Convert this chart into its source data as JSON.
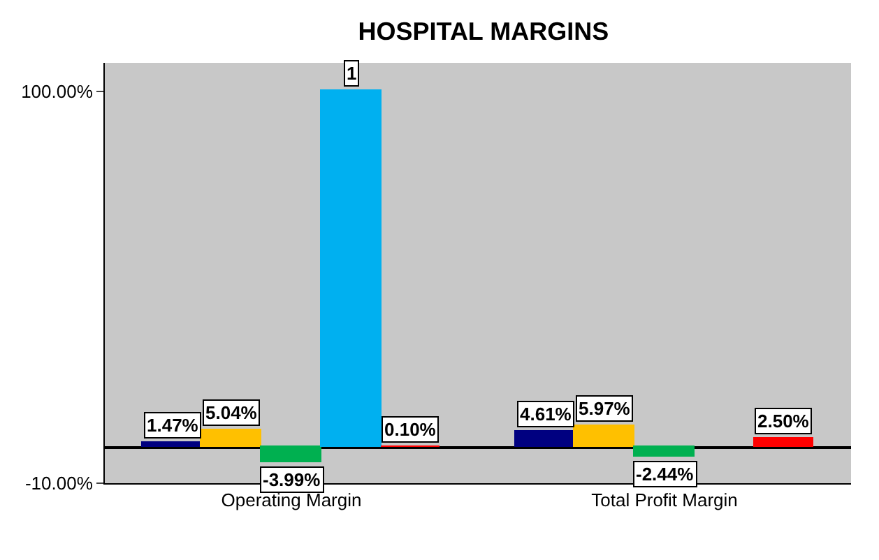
{
  "chart_data": {
    "type": "bar",
    "title": "HOSPITAL MARGINS",
    "categories": [
      "Operating Margin",
      "Total Profit Margin"
    ],
    "series": [
      {
        "color": "#000080",
        "values": [
          0.0147,
          0.0461
        ],
        "value_labels": [
          "1.47%",
          "4.61%"
        ]
      },
      {
        "color": "#ffc000",
        "values": [
          0.0504,
          0.0597
        ],
        "value_labels": [
          "5.04%",
          "5.97%"
        ]
      },
      {
        "color": "#00b050",
        "values": [
          -0.0399,
          -0.0244
        ],
        "value_labels": [
          "-3.99%",
          "-2.44%"
        ]
      },
      {
        "color": "#00b0f0",
        "values": [
          1,
          null
        ],
        "value_labels": [
          "1",
          null
        ]
      },
      {
        "color": "#ff0000",
        "values": [
          0.001,
          0.025
        ],
        "value_labels": [
          "0.10%",
          "2.50%"
        ]
      }
    ],
    "ylim": [
      -0.1,
      1.08
    ],
    "yticks": [
      {
        "value": -0.1,
        "label": "-10.00%"
      },
      {
        "value": 1,
        "label": "100.00%"
      }
    ],
    "grid": false
  }
}
